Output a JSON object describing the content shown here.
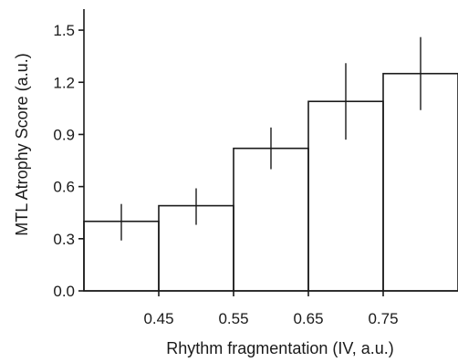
{
  "chart_data": {
    "type": "bar",
    "title": "",
    "xlabel": "Rhythm fragmentation (IV, a.u.)",
    "ylabel": "MTL  Atrophy Score (a.u.)",
    "bin_edges": [
      0.35,
      0.45,
      0.55,
      0.65,
      0.75,
      0.85
    ],
    "bin_centers": [
      0.4,
      0.5,
      0.6,
      0.7,
      0.8
    ],
    "values": [
      0.4,
      0.49,
      0.82,
      1.09,
      1.25
    ],
    "error_low": [
      0.29,
      0.38,
      0.7,
      0.87,
      1.04
    ],
    "error_high": [
      0.5,
      0.59,
      0.94,
      1.31,
      1.46
    ],
    "xlim": [
      0.35,
      0.85
    ],
    "ylim": [
      0,
      1.6
    ],
    "x_ticks": [
      0.45,
      0.55,
      0.65,
      0.75
    ],
    "x_tick_labels": [
      "0.45",
      "0.55",
      "0.65",
      "0.75"
    ],
    "y_ticks": [
      0.0,
      0.3,
      0.6,
      0.9,
      1.2,
      1.5
    ],
    "y_tick_labels": [
      "0.0",
      "0.3",
      "0.6",
      "0.9",
      "1.2",
      "1.5"
    ],
    "grid": false,
    "legend": "none"
  }
}
